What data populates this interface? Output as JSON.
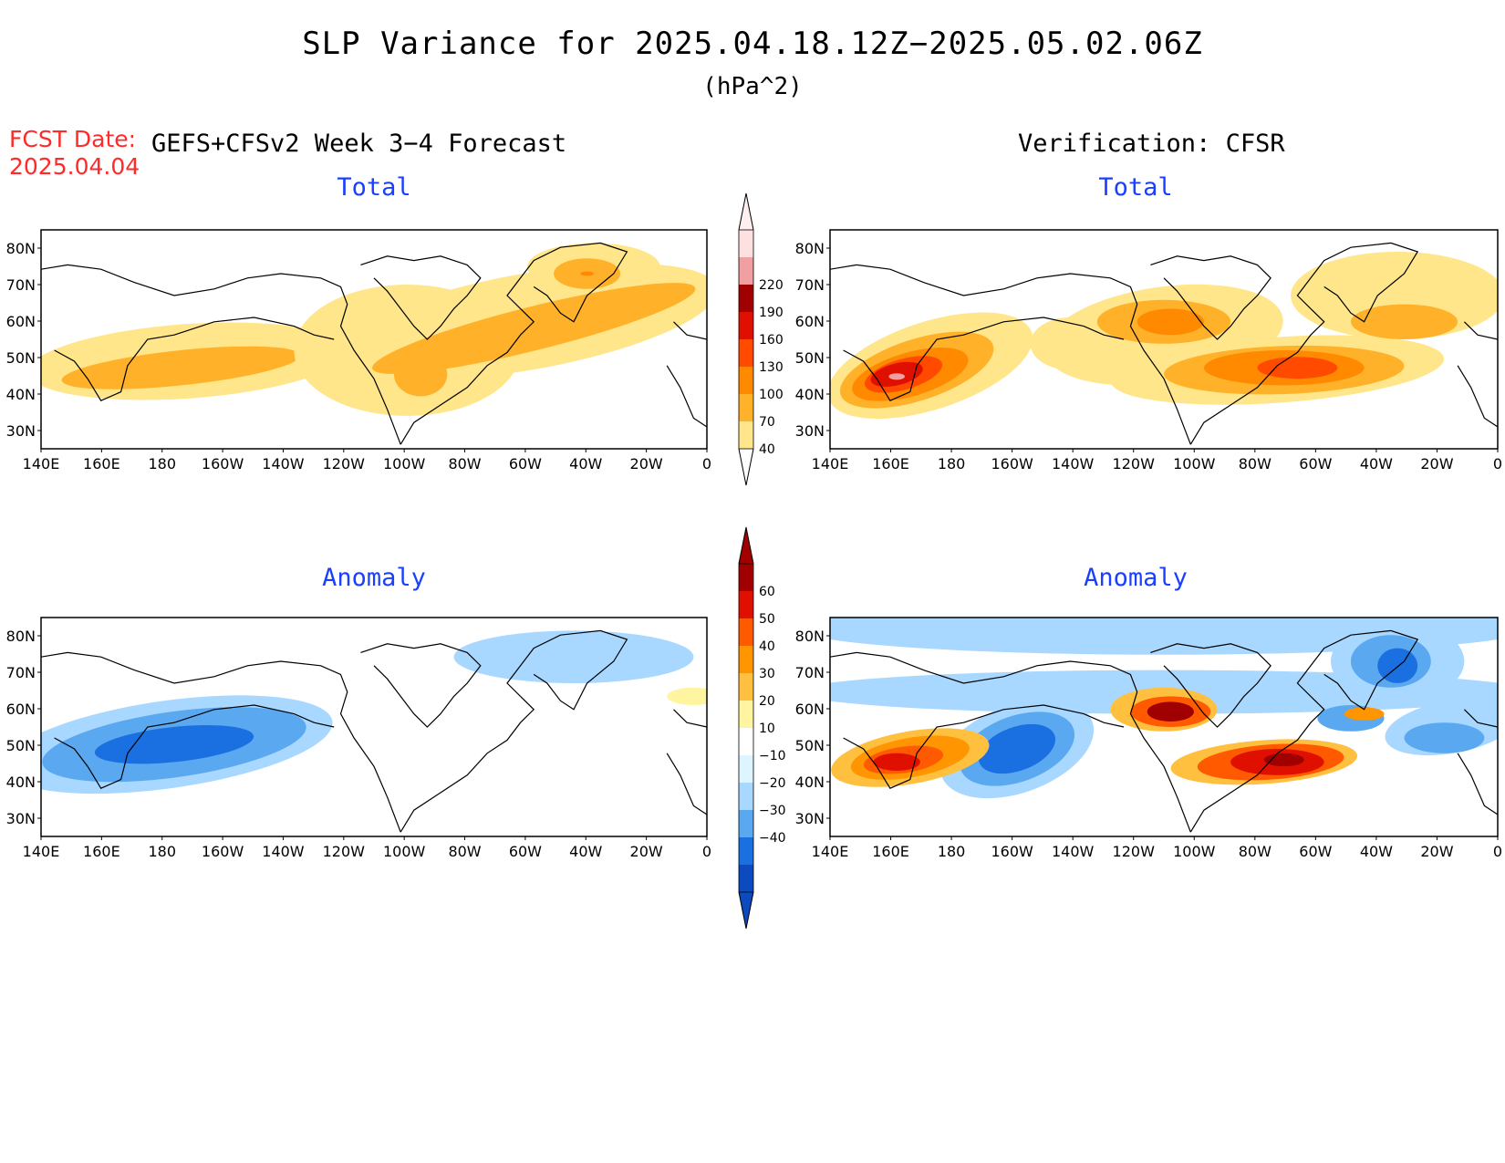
{
  "title": "SLP Variance for 2025.04.18.12Z−2025.05.02.06Z",
  "units": "(hPa^2)",
  "forecast_date_label": "FCST Date:",
  "forecast_date": "2025.04.04",
  "left_header": "GEFS+CFSv2 Week 3−4 Forecast",
  "right_header": "Verification: CFSR",
  "panel_titles": {
    "forecast_total": "Total",
    "verification_total": "Total",
    "forecast_anomaly": "Anomaly",
    "verification_anomaly": "Anomaly"
  },
  "lat_labels": [
    "80N",
    "70N",
    "60N",
    "50N",
    "40N",
    "30N"
  ],
  "lon_labels": [
    "140E",
    "160E",
    "180",
    "160W",
    "140W",
    "120W",
    "100W",
    "80W",
    "60W",
    "40W",
    "20W",
    "0"
  ],
  "total_colorbar": {
    "levels": [
      "40",
      "70",
      "100",
      "130",
      "160",
      "190",
      "220"
    ],
    "colors": [
      "#ffe68a",
      "#ffb12a",
      "#ff8a00",
      "#ff4a00",
      "#e01000",
      "#a00000",
      "#f0a0a0",
      "#ffe0e0"
    ]
  },
  "anomaly_colorbar": {
    "levels": [
      "60",
      "50",
      "40",
      "30",
      "20",
      "10",
      "−10",
      "−20",
      "−30",
      "−40"
    ],
    "colors": [
      "#a00000",
      "#e01000",
      "#ff5a00",
      "#ff9500",
      "#ffc040",
      "#fff5a0",
      "#ffffff",
      "#ddf5ff",
      "#a8d8ff",
      "#5aa8f0",
      "#1a70e0",
      "#0c4ac0"
    ]
  },
  "coast_color": "#000000"
}
